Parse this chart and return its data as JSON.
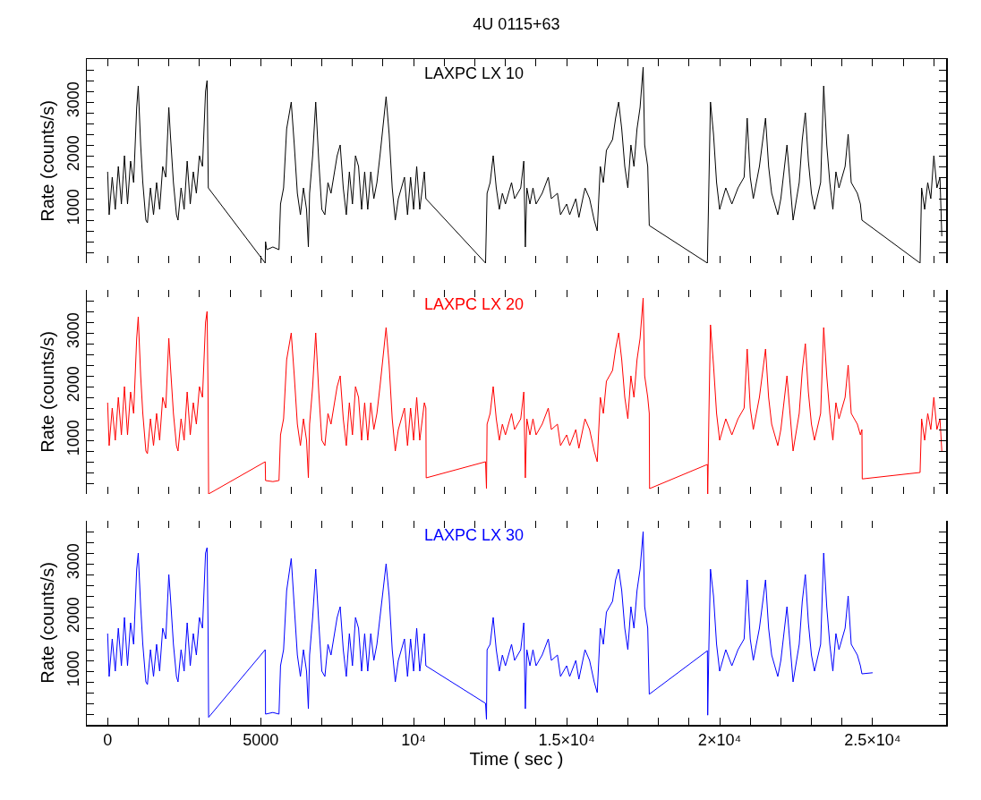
{
  "chart_data": [
    {
      "type": "line",
      "title": "4U 0115+63",
      "ylabel": "Rate (counts/s)",
      "tick_labels": "y",
      "xlim": [
        -680,
        27400
      ],
      "ylim": [
        0,
        3800
      ],
      "xticks": [
        {
          "value": 0,
          "label": null
        },
        {
          "value": 1000,
          "label": null
        },
        {
          "value": 2000,
          "label": null
        },
        {
          "value": 3000,
          "label": null
        },
        {
          "value": 4000,
          "label": null
        },
        {
          "value": 5000,
          "label": null
        },
        {
          "value": 6000,
          "label": null
        },
        {
          "value": 7000,
          "label": null
        },
        {
          "value": 8000,
          "label": null
        },
        {
          "value": 9000,
          "label": null
        },
        {
          "value": 10000,
          "label": null
        },
        {
          "value": 11000,
          "label": null
        },
        {
          "value": 12000,
          "label": null
        },
        {
          "value": 13000,
          "label": null
        },
        {
          "value": 14000,
          "label": null
        },
        {
          "value": 15000,
          "label": null
        },
        {
          "value": 16000,
          "label": null
        },
        {
          "value": 17000,
          "label": null
        },
        {
          "value": 18000,
          "label": null
        },
        {
          "value": 19000,
          "label": null
        },
        {
          "value": 20000,
          "label": null
        },
        {
          "value": 21000,
          "label": null
        },
        {
          "value": 22000,
          "label": null
        },
        {
          "value": 23000,
          "label": null
        },
        {
          "value": 24000,
          "label": null
        },
        {
          "value": 25000,
          "label": null
        },
        {
          "value": 26000,
          "label": null
        },
        {
          "value": 27000,
          "label": null
        }
      ],
      "yticks": [
        {
          "value": 200,
          "label": null
        },
        {
          "value": 400,
          "label": null
        },
        {
          "value": 600,
          "label": null
        },
        {
          "value": 800,
          "label": null
        },
        1000,
        {
          "value": 1200,
          "label": null
        },
        {
          "value": 1400,
          "label": null
        },
        {
          "value": 1600,
          "label": null
        },
        {
          "value": 1800,
          "label": null
        },
        2000,
        {
          "value": 2200,
          "label": null
        },
        {
          "value": 2400,
          "label": null
        },
        {
          "value": 2600,
          "label": null
        },
        {
          "value": 2800,
          "label": null
        },
        3000,
        {
          "value": 3200,
          "label": null
        },
        {
          "value": 3400,
          "label": null
        },
        {
          "value": 3600,
          "label": null
        }
      ],
      "x": [
        0,
        50,
        150,
        250,
        350,
        450,
        550,
        650,
        750,
        850,
        950,
        1000,
        1080,
        1150,
        1250,
        1300,
        1400,
        1500,
        1600,
        1700,
        1800,
        1900,
        2000,
        2050,
        2150,
        2250,
        2300,
        2400,
        2500,
        2600,
        2700,
        2800,
        2900,
        3000,
        3100,
        3200,
        3250,
        3280,
        3290,
        5150,
        5160,
        5200,
        5400,
        5600,
        5650,
        5750,
        5850,
        6000,
        6100,
        6200,
        6300,
        6400,
        6500,
        6560,
        6600,
        6700,
        6800,
        6900,
        7000,
        7100,
        7200,
        7300,
        7500,
        7600,
        7700,
        7800,
        7900,
        8000,
        8100,
        8200,
        8300,
        8400,
        8500,
        8600,
        8700,
        8800,
        8900,
        9100,
        9200,
        9300,
        9400,
        9500,
        9700,
        9800,
        9900,
        10000,
        10100,
        10200,
        10350,
        10400,
        12350,
        12400,
        12500,
        12600,
        12700,
        12800,
        12900,
        13000,
        13200,
        13300,
        13500,
        13600,
        13650,
        13700,
        13800,
        13900,
        14000,
        14200,
        14400,
        14500,
        14700,
        14800,
        15000,
        15100,
        15300,
        15400,
        15600,
        15750,
        15900,
        16000,
        16100,
        16200,
        16300,
        16500,
        16600,
        16700,
        16800,
        16900,
        17000,
        17100,
        17200,
        17300,
        17400,
        17500,
        17550,
        17650,
        17700,
        19600,
        19650,
        19700,
        19800,
        19900,
        20000,
        20200,
        20400,
        20600,
        20800,
        20900,
        21000,
        21100,
        21300,
        21500,
        21600,
        21700,
        21900,
        22000,
        22200,
        22300,
        22400,
        22600,
        22700,
        22800,
        22900,
        23000,
        23100,
        23300,
        23400,
        23500,
        23600,
        23700,
        23800,
        23900,
        24100,
        24200,
        24300,
        24500,
        24600,
        24650,
        26550,
        26600,
        26700,
        26800,
        26900,
        27000,
        27100,
        27200,
        27260
      ],
      "series": [
        {
          "name": "LAXPC LX 10",
          "color": "#000000",
          "values": [
            1700,
            900,
            1600,
            1000,
            1800,
            1100,
            2000,
            1100,
            1900,
            1500,
            2900,
            3300,
            2200,
            1500,
            800,
            750,
            1400,
            900,
            1500,
            1000,
            1800,
            1600,
            2900,
            2400,
            1500,
            900,
            800,
            1400,
            1000,
            1900,
            1100,
            1700,
            1300,
            2000,
            1800,
            3200,
            3400,
            1900,
            1400,
            0,
            400,
            250,
            300,
            250,
            1100,
            1400,
            2500,
            3000,
            2200,
            1300,
            900,
            1400,
            1000,
            300,
            1300,
            2000,
            3000,
            1900,
            1000,
            900,
            1500,
            1300,
            2000,
            2200,
            1400,
            900,
            1700,
            1100,
            2000,
            1800,
            1000,
            1700,
            1000,
            1700,
            1200,
            1500,
            2000,
            3100,
            2400,
            1400,
            800,
            1200,
            1600,
            900,
            1600,
            1000,
            1800,
            1000,
            1700,
            1200,
            0,
            1300,
            1500,
            2000,
            1400,
            1000,
            1300,
            1100,
            1500,
            1200,
            1400,
            1900,
            300,
            1400,
            1100,
            1400,
            1100,
            1300,
            1600,
            1200,
            1300,
            900,
            1100,
            900,
            1200,
            850,
            1400,
            1200,
            800,
            600,
            1800,
            1500,
            2100,
            2300,
            2700,
            3000,
            2500,
            1800,
            1400,
            2200,
            1800,
            2500,
            2900,
            3650,
            2200,
            1800,
            700,
            0,
            1500,
            3000,
            2400,
            1500,
            1000,
            1400,
            1100,
            1400,
            1600,
            2700,
            1600,
            1200,
            1800,
            2700,
            1800,
            1300,
            900,
            1200,
            2200,
            1500,
            800,
            1500,
            2300,
            2800,
            1900,
            1300,
            1000,
            1500,
            3300,
            2200,
            1500,
            1000,
            1700,
            1400,
            1800,
            2400,
            1500,
            1300,
            1100,
            800,
            0,
            1400,
            1000,
            1500,
            1200,
            2000,
            1400,
            1600,
            500
          ]
        }
      ]
    },
    {
      "type": "line",
      "ylabel": "Rate (counts/s)",
      "tick_labels": "y",
      "xlim": [
        -680,
        27400
      ],
      "ylim": [
        0,
        3800
      ],
      "xticks": [
        {
          "value": 0,
          "label": null
        },
        {
          "value": 1000,
          "label": null
        },
        {
          "value": 2000,
          "label": null
        },
        {
          "value": 3000,
          "label": null
        },
        {
          "value": 4000,
          "label": null
        },
        {
          "value": 5000,
          "label": null
        },
        {
          "value": 6000,
          "label": null
        },
        {
          "value": 7000,
          "label": null
        },
        {
          "value": 8000,
          "label": null
        },
        {
          "value": 9000,
          "label": null
        },
        {
          "value": 10000,
          "label": null
        },
        {
          "value": 11000,
          "label": null
        },
        {
          "value": 12000,
          "label": null
        },
        {
          "value": 13000,
          "label": null
        },
        {
          "value": 14000,
          "label": null
        },
        {
          "value": 15000,
          "label": null
        },
        {
          "value": 16000,
          "label": null
        },
        {
          "value": 17000,
          "label": null
        },
        {
          "value": 18000,
          "label": null
        },
        {
          "value": 19000,
          "label": null
        },
        {
          "value": 20000,
          "label": null
        },
        {
          "value": 21000,
          "label": null
        },
        {
          "value": 22000,
          "label": null
        },
        {
          "value": 23000,
          "label": null
        },
        {
          "value": 24000,
          "label": null
        },
        {
          "value": 25000,
          "label": null
        },
        {
          "value": 26000,
          "label": null
        },
        {
          "value": 27000,
          "label": null
        }
      ],
      "yticks": [
        {
          "value": 200,
          "label": null
        },
        {
          "value": 400,
          "label": null
        },
        {
          "value": 600,
          "label": null
        },
        {
          "value": 800,
          "label": null
        },
        1000,
        {
          "value": 1200,
          "label": null
        },
        {
          "value": 1400,
          "label": null
        },
        {
          "value": 1600,
          "label": null
        },
        {
          "value": 1800,
          "label": null
        },
        2000,
        {
          "value": 2200,
          "label": null
        },
        {
          "value": 2400,
          "label": null
        },
        {
          "value": 2600,
          "label": null
        },
        {
          "value": 2800,
          "label": null
        },
        3000,
        {
          "value": 3200,
          "label": null
        },
        {
          "value": 3400,
          "label": null
        },
        {
          "value": 3600,
          "label": null
        }
      ],
      "x": [
        0,
        50,
        150,
        250,
        350,
        450,
        550,
        650,
        750,
        850,
        950,
        1000,
        1080,
        1150,
        1250,
        1300,
        1400,
        1500,
        1600,
        1700,
        1800,
        1900,
        2000,
        2050,
        2150,
        2250,
        2300,
        2400,
        2500,
        2600,
        2700,
        2800,
        2900,
        3000,
        3100,
        3200,
        3250,
        3280,
        3300,
        5150,
        5160,
        5400,
        5600,
        5650,
        5750,
        5850,
        6000,
        6100,
        6200,
        6300,
        6400,
        6500,
        6560,
        6600,
        6700,
        6800,
        6900,
        7000,
        7100,
        7200,
        7300,
        7500,
        7600,
        7700,
        7800,
        7900,
        8000,
        8100,
        8200,
        8300,
        8400,
        8500,
        8600,
        8700,
        8800,
        8900,
        9100,
        9200,
        9300,
        9400,
        9500,
        9700,
        9800,
        9900,
        10000,
        10100,
        10200,
        10350,
        10400,
        10410,
        12350,
        12380,
        12400,
        12500,
        12600,
        12700,
        12800,
        12900,
        13000,
        13200,
        13300,
        13500,
        13600,
        13650,
        13700,
        13800,
        13900,
        14000,
        14200,
        14400,
        14500,
        14700,
        14800,
        15000,
        15100,
        15300,
        15400,
        15600,
        15750,
        15900,
        16000,
        16100,
        16200,
        16300,
        16500,
        16600,
        16700,
        16800,
        16900,
        17000,
        17100,
        17200,
        17300,
        17400,
        17500,
        17550,
        17650,
        17700,
        17710,
        19600,
        19610,
        19650,
        19700,
        19800,
        19900,
        20000,
        20200,
        20400,
        20600,
        20800,
        20900,
        21000,
        21100,
        21300,
        21500,
        21600,
        21700,
        21900,
        22000,
        22200,
        22300,
        22400,
        22600,
        22700,
        22800,
        22900,
        23000,
        23100,
        23300,
        23400,
        23500,
        23600,
        23700,
        23800,
        23900,
        24100,
        24200,
        24300,
        24500,
        24600,
        24650,
        24660,
        26550,
        26600,
        26700,
        26800,
        26900,
        27000,
        27100,
        27200,
        27260
      ],
      "series": [
        {
          "name": "LAXPC LX 20",
          "color": "#ff0000",
          "values": [
            1700,
            900,
            1600,
            1000,
            1800,
            1100,
            2000,
            1100,
            1900,
            1500,
            2900,
            3300,
            2200,
            1500,
            800,
            750,
            1400,
            900,
            1500,
            1000,
            1800,
            1600,
            2900,
            2400,
            1500,
            900,
            800,
            1400,
            1000,
            1900,
            1100,
            1700,
            1300,
            2000,
            1800,
            3200,
            3400,
            2000,
            0,
            600,
            250,
            230,
            250,
            1100,
            1400,
            2500,
            3000,
            2200,
            1300,
            900,
            1400,
            1000,
            300,
            1300,
            2000,
            3000,
            1900,
            1000,
            900,
            1500,
            1300,
            2000,
            2200,
            1400,
            900,
            1700,
            1100,
            2000,
            1800,
            1000,
            1700,
            1000,
            1700,
            1200,
            1500,
            2000,
            3100,
            2400,
            1400,
            800,
            1200,
            1600,
            900,
            1600,
            1000,
            1800,
            1000,
            1700,
            1600,
            300,
            600,
            100,
            1300,
            1500,
            2000,
            1400,
            1000,
            1300,
            1100,
            1500,
            1200,
            1400,
            1900,
            300,
            1400,
            1100,
            1400,
            1100,
            1300,
            1600,
            1200,
            1300,
            900,
            1100,
            900,
            1200,
            850,
            1400,
            1200,
            800,
            600,
            1800,
            1500,
            2100,
            2300,
            2700,
            3000,
            2500,
            1800,
            1400,
            2200,
            1800,
            2500,
            2900,
            3650,
            2200,
            1800,
            1500,
            100,
            550,
            0,
            1500,
            3150,
            2400,
            1500,
            1000,
            1400,
            1100,
            1400,
            1600,
            2700,
            1600,
            1200,
            1800,
            2700,
            1800,
            1300,
            900,
            1200,
            2200,
            1500,
            800,
            1500,
            2300,
            2800,
            1900,
            1300,
            1000,
            1500,
            3100,
            2200,
            1500,
            1000,
            1700,
            1400,
            1800,
            2400,
            1500,
            1300,
            1100,
            1200,
            280,
            400,
            1400,
            1000,
            1500,
            1200,
            1800,
            1200,
            1400,
            800
          ]
        }
      ]
    },
    {
      "type": "line",
      "xlabel": "Time ( sec )",
      "ylabel": "Rate (counts/s)",
      "xlim": [
        -680,
        27400
      ],
      "ylim": [
        0,
        3800
      ],
      "xticks": [
        0,
        {
          "value": 1000,
          "label": null
        },
        {
          "value": 2000,
          "label": null
        },
        {
          "value": 3000,
          "label": null
        },
        {
          "value": 4000,
          "label": null
        },
        5000,
        {
          "value": 6000,
          "label": null
        },
        {
          "value": 7000,
          "label": null
        },
        {
          "value": 8000,
          "label": null
        },
        {
          "value": 9000,
          "label": null
        },
        {
          "value": 10000,
          "label": "10⁴"
        },
        {
          "value": 11000,
          "label": null
        },
        {
          "value": 12000,
          "label": null
        },
        {
          "value": 13000,
          "label": null
        },
        {
          "value": 14000,
          "label": null
        },
        {
          "value": 15000,
          "label": "1.5×10⁴"
        },
        {
          "value": 16000,
          "label": null
        },
        {
          "value": 17000,
          "label": null
        },
        {
          "value": 18000,
          "label": null
        },
        {
          "value": 19000,
          "label": null
        },
        {
          "value": 20000,
          "label": "2×10⁴"
        },
        {
          "value": 21000,
          "label": null
        },
        {
          "value": 22000,
          "label": null
        },
        {
          "value": 23000,
          "label": null
        },
        {
          "value": 24000,
          "label": null
        },
        {
          "value": 25000,
          "label": "2.5×10⁴"
        }
      ],
      "yticks": [
        {
          "value": 200,
          "label": null
        },
        {
          "value": 400,
          "label": null
        },
        {
          "value": 600,
          "label": null
        },
        {
          "value": 800,
          "label": null
        },
        1000,
        {
          "value": 1200,
          "label": null
        },
        {
          "value": 1400,
          "label": null
        },
        {
          "value": 1600,
          "label": null
        },
        {
          "value": 1800,
          "label": null
        },
        2000,
        {
          "value": 2200,
          "label": null
        },
        {
          "value": 2400,
          "label": null
        },
        {
          "value": 2600,
          "label": null
        },
        {
          "value": 2800,
          "label": null
        },
        3000,
        {
          "value": 3200,
          "label": null
        },
        {
          "value": 3400,
          "label": null
        },
        {
          "value": 3600,
          "label": null
        }
      ],
      "x": [
        0,
        50,
        150,
        250,
        350,
        450,
        550,
        650,
        750,
        850,
        950,
        1000,
        1080,
        1150,
        1250,
        1300,
        1400,
        1500,
        1600,
        1700,
        1800,
        1900,
        2000,
        2050,
        2150,
        2250,
        2300,
        2400,
        2500,
        2600,
        2700,
        2800,
        2900,
        3000,
        3100,
        3200,
        3250,
        3280,
        3300,
        5150,
        5160,
        5400,
        5600,
        5650,
        5750,
        5850,
        6000,
        6100,
        6200,
        6300,
        6400,
        6500,
        6560,
        6600,
        6700,
        6800,
        6900,
        7000,
        7100,
        7200,
        7300,
        7500,
        7600,
        7700,
        7800,
        7900,
        8000,
        8100,
        8200,
        8300,
        8400,
        8500,
        8600,
        8700,
        8800,
        8900,
        9100,
        9200,
        9300,
        9400,
        9500,
        9700,
        9800,
        9900,
        10000,
        10100,
        10200,
        10350,
        10400,
        12350,
        12380,
        12400,
        12500,
        12600,
        12700,
        12800,
        12900,
        13000,
        13200,
        13300,
        13500,
        13600,
        13650,
        13700,
        13800,
        13900,
        14000,
        14200,
        14400,
        14500,
        14700,
        14800,
        15000,
        15100,
        15300,
        15400,
        15600,
        15750,
        15900,
        16000,
        16100,
        16200,
        16300,
        16500,
        16600,
        16700,
        16800,
        16900,
        17000,
        17100,
        17200,
        17300,
        17400,
        17500,
        17550,
        17650,
        17700,
        19600,
        19610,
        19650,
        19700,
        19800,
        19900,
        20000,
        20200,
        20400,
        20600,
        20800,
        20900,
        21000,
        21100,
        21300,
        21500,
        21600,
        21700,
        21900,
        22000,
        22200,
        22300,
        22400,
        22600,
        22700,
        22800,
        22900,
        23000,
        23100,
        23300,
        23400,
        23500,
        23600,
        23700,
        23800,
        23900,
        24100,
        24200,
        24300,
        24500,
        24600,
        24650,
        25000
      ],
      "series": [
        {
          "name": "LAXPC LX 30",
          "color": "#0000ff",
          "values": [
            1700,
            900,
            1600,
            1000,
            1800,
            1100,
            2000,
            1100,
            1900,
            1500,
            2900,
            3200,
            2200,
            1500,
            800,
            750,
            1400,
            900,
            1500,
            1000,
            1800,
            1600,
            2800,
            2400,
            1500,
            900,
            800,
            1400,
            1000,
            1900,
            1100,
            1700,
            1300,
            2000,
            1800,
            3200,
            3300,
            1900,
            140,
            1400,
            200,
            230,
            200,
            1100,
            1400,
            2500,
            3100,
            2200,
            1300,
            900,
            1400,
            1000,
            300,
            1300,
            2000,
            2900,
            1900,
            1000,
            900,
            1500,
            1300,
            2000,
            2200,
            1400,
            900,
            1700,
            1100,
            2000,
            1800,
            1000,
            1700,
            1000,
            1700,
            1200,
            1500,
            2000,
            3000,
            2400,
            1400,
            800,
            1200,
            1600,
            900,
            1600,
            1000,
            1800,
            1000,
            1700,
            1100,
            400,
            100,
            1400,
            1500,
            2000,
            1400,
            1000,
            1300,
            1100,
            1500,
            1200,
            1400,
            1900,
            300,
            1400,
            1100,
            1400,
            1100,
            1300,
            1600,
            1200,
            1300,
            900,
            1100,
            900,
            1200,
            850,
            1400,
            1200,
            800,
            600,
            1800,
            1500,
            2100,
            2300,
            2700,
            2900,
            2500,
            1800,
            1400,
            2200,
            1800,
            2500,
            2900,
            3600,
            2200,
            1800,
            570,
            1380,
            180,
            1500,
            2900,
            2400,
            1500,
            1000,
            1400,
            1100,
            1400,
            1600,
            2700,
            1600,
            1200,
            1800,
            2700,
            1800,
            1300,
            900,
            1200,
            2200,
            1500,
            800,
            1500,
            2300,
            2800,
            1900,
            1300,
            1000,
            1500,
            3200,
            2200,
            1500,
            1000,
            1700,
            1400,
            1800,
            2400,
            1500,
            1300,
            1100,
            950,
            970
          ]
        }
      ]
    }
  ]
}
